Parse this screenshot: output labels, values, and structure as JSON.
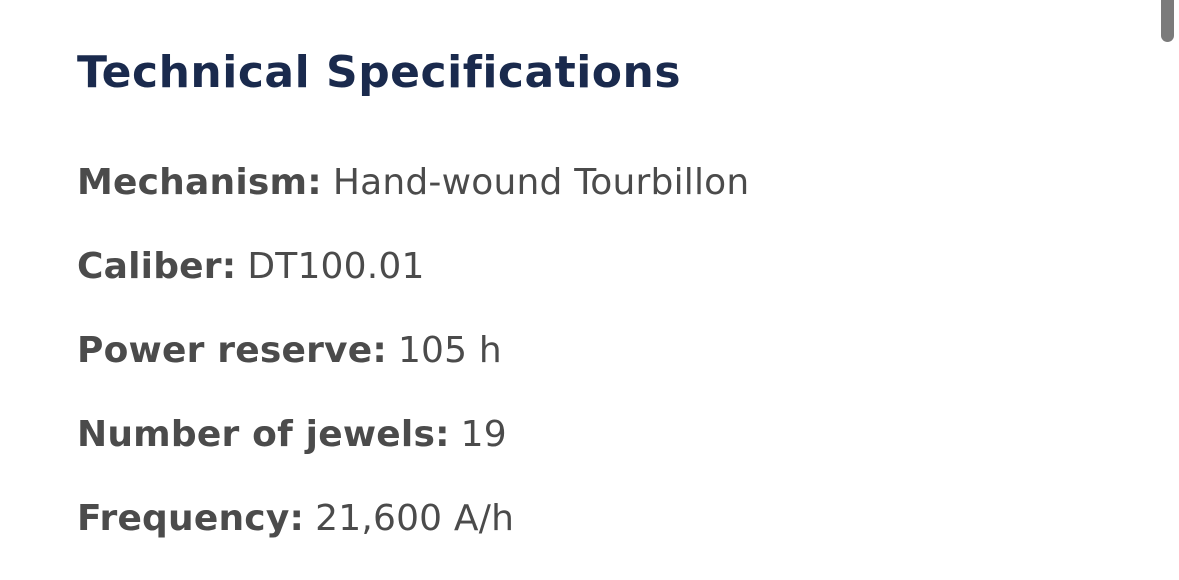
{
  "page": {
    "title": "Technical Specifications",
    "specs": [
      {
        "label": "Mechanism:",
        "value": "Hand-wound Tourbillon"
      },
      {
        "label": "Caliber:",
        "value": "DT100.01"
      },
      {
        "label": "Power reserve:",
        "value": "105 h"
      },
      {
        "label": "Number of jewels:",
        "value": "19"
      },
      {
        "label": "Frequency:",
        "value": "21,600 A/h"
      }
    ]
  },
  "colors": {
    "heading": "#1a2a4d",
    "text": "#4b4b4b",
    "scrollbar_thumb": "#7b7b7b",
    "background": "#ffffff"
  }
}
